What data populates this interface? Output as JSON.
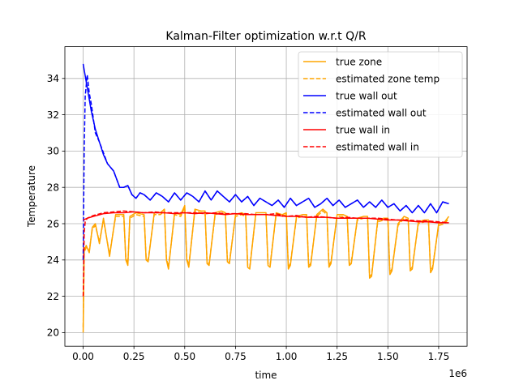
{
  "chart_data": {
    "type": "line",
    "title": "Kalman-Filter optimization w.r.t Q/R",
    "xlabel": "time",
    "ylabel": "Temperature",
    "x_offset_text": "1e6",
    "xlim": [
      -0.09,
      1.89
    ],
    "ylim": [
      19.25,
      35.75
    ],
    "x_ticks": [
      0.0,
      0.25,
      0.5,
      0.75,
      1.0,
      1.25,
      1.5,
      1.75
    ],
    "x_tick_labels": [
      "0.00",
      "0.25",
      "0.50",
      "0.75",
      "1.00",
      "1.25",
      "1.50",
      "1.75"
    ],
    "y_ticks": [
      20,
      22,
      24,
      26,
      28,
      30,
      32,
      34
    ],
    "y_tick_labels": [
      "20",
      "22",
      "24",
      "26",
      "28",
      "30",
      "32",
      "34"
    ],
    "grid": true,
    "legend_position": "top-right",
    "series": [
      {
        "name": "true zone",
        "color": "#ffa500",
        "style": "solid",
        "x": [
          0.0,
          0.005,
          0.015,
          0.03,
          0.045,
          0.06,
          0.08,
          0.1,
          0.13,
          0.16,
          0.2,
          0.21,
          0.22,
          0.23,
          0.26,
          0.3,
          0.31,
          0.32,
          0.35,
          0.38,
          0.4,
          0.41,
          0.42,
          0.45,
          0.48,
          0.5,
          0.51,
          0.52,
          0.55,
          0.58,
          0.6,
          0.61,
          0.62,
          0.65,
          0.68,
          0.7,
          0.71,
          0.72,
          0.75,
          0.78,
          0.8,
          0.81,
          0.82,
          0.85,
          0.88,
          0.9,
          0.91,
          0.92,
          0.95,
          0.98,
          1.0,
          1.01,
          1.02,
          1.05,
          1.08,
          1.1,
          1.11,
          1.12,
          1.15,
          1.18,
          1.2,
          1.21,
          1.22,
          1.25,
          1.28,
          1.3,
          1.31,
          1.32,
          1.35,
          1.38,
          1.4,
          1.41,
          1.42,
          1.45,
          1.48,
          1.5,
          1.51,
          1.52,
          1.55,
          1.58,
          1.6,
          1.61,
          1.62,
          1.65,
          1.68,
          1.7,
          1.71,
          1.72,
          1.75,
          1.78,
          1.8
        ],
        "y": [
          20.0,
          24.5,
          24.8,
          24.4,
          25.8,
          26.0,
          24.9,
          26.3,
          24.2,
          26.5,
          26.5,
          24.0,
          23.7,
          26.4,
          26.6,
          26.5,
          24.0,
          23.9,
          26.6,
          26.6,
          26.8,
          24.0,
          23.5,
          26.6,
          26.5,
          27.0,
          24.0,
          23.6,
          26.8,
          26.7,
          26.7,
          23.8,
          23.7,
          26.6,
          26.7,
          26.6,
          23.9,
          23.8,
          26.5,
          26.6,
          26.5,
          23.6,
          23.5,
          26.6,
          26.6,
          26.6,
          23.7,
          23.6,
          26.6,
          26.5,
          26.6,
          23.5,
          23.7,
          26.4,
          26.5,
          26.5,
          23.6,
          23.7,
          26.5,
          26.8,
          26.6,
          23.6,
          23.8,
          26.5,
          26.5,
          26.4,
          23.7,
          23.8,
          26.3,
          26.4,
          26.4,
          23.0,
          23.1,
          26.2,
          26.3,
          26.3,
          23.2,
          23.4,
          26.0,
          26.4,
          26.3,
          23.4,
          23.5,
          26.1,
          26.2,
          26.2,
          23.3,
          23.5,
          26.0,
          26.1,
          26.4
        ]
      },
      {
        "name": "estimated zone temp",
        "color": "#ffa500",
        "style": "dashed",
        "x": [
          0.0,
          0.005,
          0.015,
          0.03,
          0.045,
          0.06,
          0.08,
          0.1,
          0.13,
          0.16,
          0.2,
          0.21,
          0.22,
          0.23,
          0.26,
          0.3,
          0.31,
          0.32,
          0.35,
          0.38,
          0.4,
          0.41,
          0.42,
          0.45,
          0.48,
          0.5,
          0.51,
          0.52,
          0.55,
          0.58,
          0.6,
          0.61,
          0.62,
          0.65,
          0.68,
          0.7,
          0.71,
          0.72,
          0.75,
          0.78,
          0.8,
          0.81,
          0.82,
          0.85,
          0.88,
          0.9,
          0.91,
          0.92,
          0.95,
          0.98,
          1.0,
          1.01,
          1.02,
          1.05,
          1.08,
          1.1,
          1.11,
          1.12,
          1.15,
          1.18,
          1.2,
          1.21,
          1.22,
          1.25,
          1.28,
          1.3,
          1.31,
          1.32,
          1.35,
          1.38,
          1.4,
          1.41,
          1.42,
          1.45,
          1.48,
          1.5,
          1.51,
          1.52,
          1.55,
          1.58,
          1.6,
          1.61,
          1.62,
          1.65,
          1.68,
          1.7,
          1.71,
          1.72,
          1.75,
          1.78,
          1.8
        ],
        "y": [
          20.3,
          24.4,
          24.7,
          24.5,
          25.7,
          25.9,
          25.0,
          26.2,
          24.3,
          26.4,
          26.4,
          24.1,
          23.8,
          26.3,
          26.5,
          26.4,
          24.1,
          24.0,
          26.5,
          26.5,
          26.7,
          24.1,
          23.6,
          26.5,
          26.4,
          26.9,
          24.1,
          23.7,
          26.7,
          26.6,
          26.6,
          23.9,
          23.8,
          26.5,
          26.6,
          26.5,
          24.0,
          23.9,
          26.4,
          26.5,
          26.4,
          23.7,
          23.6,
          26.5,
          26.5,
          26.5,
          23.8,
          23.7,
          26.5,
          26.4,
          26.5,
          23.6,
          23.8,
          26.3,
          26.4,
          26.4,
          23.7,
          23.8,
          26.4,
          26.7,
          26.5,
          23.7,
          23.9,
          26.4,
          26.4,
          26.3,
          23.8,
          23.9,
          26.2,
          26.3,
          26.3,
          23.1,
          23.2,
          26.1,
          26.2,
          26.2,
          23.3,
          23.5,
          25.9,
          26.3,
          26.2,
          23.5,
          23.6,
          26.0,
          26.1,
          26.1,
          23.4,
          23.6,
          25.9,
          26.0,
          26.3
        ]
      },
      {
        "name": "true wall out",
        "color": "#0000ff",
        "style": "solid",
        "x": [
          0.0,
          0.02,
          0.04,
          0.06,
          0.08,
          0.1,
          0.12,
          0.15,
          0.18,
          0.2,
          0.22,
          0.24,
          0.26,
          0.28,
          0.3,
          0.33,
          0.36,
          0.39,
          0.42,
          0.45,
          0.48,
          0.51,
          0.54,
          0.57,
          0.6,
          0.63,
          0.66,
          0.69,
          0.72,
          0.75,
          0.78,
          0.81,
          0.84,
          0.87,
          0.9,
          0.93,
          0.96,
          0.99,
          1.02,
          1.05,
          1.08,
          1.11,
          1.14,
          1.17,
          1.2,
          1.23,
          1.26,
          1.29,
          1.32,
          1.35,
          1.38,
          1.41,
          1.44,
          1.47,
          1.5,
          1.53,
          1.56,
          1.59,
          1.62,
          1.65,
          1.68,
          1.71,
          1.74,
          1.77,
          1.8
        ],
        "y": [
          34.8,
          33.5,
          32.2,
          31.2,
          30.5,
          29.8,
          29.3,
          28.9,
          28.0,
          28.0,
          28.1,
          27.6,
          27.4,
          27.7,
          27.6,
          27.3,
          27.7,
          27.5,
          27.2,
          27.7,
          27.3,
          27.7,
          27.5,
          27.2,
          27.8,
          27.3,
          27.8,
          27.5,
          27.2,
          27.6,
          27.2,
          27.5,
          27.0,
          27.4,
          27.2,
          27.0,
          27.3,
          26.9,
          27.4,
          27.0,
          27.2,
          27.4,
          26.9,
          27.1,
          27.4,
          27.0,
          27.3,
          26.9,
          27.1,
          27.3,
          26.9,
          27.2,
          26.9,
          27.3,
          26.9,
          27.1,
          26.7,
          27.0,
          26.6,
          27.0,
          26.6,
          27.1,
          26.6,
          27.2,
          27.1
        ]
      },
      {
        "name": "estimated wall out",
        "color": "#0000ff",
        "style": "dashed",
        "x": [
          0.0,
          0.005,
          0.01,
          0.02,
          0.03,
          0.04,
          0.06,
          0.08,
          0.1,
          0.12,
          0.15,
          0.18,
          0.2,
          0.22,
          0.24,
          0.26,
          0.28,
          0.3,
          0.33,
          0.36,
          0.39,
          0.42,
          0.45,
          0.48,
          0.51,
          0.54,
          0.57,
          0.6,
          0.63,
          0.66,
          0.69,
          0.72,
          0.75,
          0.78,
          0.81,
          0.84,
          0.87,
          0.9,
          0.93,
          0.96,
          0.99,
          1.02,
          1.05,
          1.08,
          1.11,
          1.14,
          1.17,
          1.2,
          1.23,
          1.26,
          1.29,
          1.32,
          1.35,
          1.38,
          1.41,
          1.44,
          1.47,
          1.5,
          1.53,
          1.56,
          1.59,
          1.62,
          1.65,
          1.68,
          1.71,
          1.74,
          1.77,
          1.8
        ],
        "y": [
          24.0,
          30.0,
          33.0,
          34.2,
          33.2,
          32.6,
          31.0,
          30.5,
          29.9,
          29.3,
          28.9,
          28.0,
          28.0,
          28.1,
          27.6,
          27.4,
          27.7,
          27.6,
          27.3,
          27.7,
          27.5,
          27.2,
          27.7,
          27.3,
          27.7,
          27.5,
          27.2,
          27.8,
          27.3,
          27.8,
          27.5,
          27.2,
          27.6,
          27.2,
          27.5,
          27.0,
          27.4,
          27.2,
          27.0,
          27.3,
          26.9,
          27.4,
          27.0,
          27.2,
          27.4,
          26.9,
          27.1,
          27.4,
          27.0,
          27.3,
          26.9,
          27.1,
          27.3,
          26.9,
          27.2,
          26.9,
          27.3,
          26.9,
          27.1,
          26.7,
          27.0,
          26.6,
          27.0,
          26.6,
          27.1,
          26.6,
          27.2,
          27.1
        ]
      },
      {
        "name": "true wall in",
        "color": "#ff0000",
        "style": "solid",
        "x": [
          0.0,
          0.02,
          0.05,
          0.1,
          0.15,
          0.2,
          0.25,
          0.3,
          0.35,
          0.4,
          0.45,
          0.5,
          0.55,
          0.6,
          0.65,
          0.7,
          0.75,
          0.8,
          0.85,
          0.9,
          0.95,
          1.0,
          1.05,
          1.1,
          1.15,
          1.2,
          1.25,
          1.3,
          1.35,
          1.4,
          1.45,
          1.5,
          1.55,
          1.6,
          1.65,
          1.7,
          1.75,
          1.8
        ],
        "y": [
          26.2,
          26.3,
          26.4,
          26.55,
          26.6,
          26.6,
          26.65,
          26.6,
          26.6,
          26.6,
          26.55,
          26.6,
          26.55,
          26.6,
          26.55,
          26.5,
          26.55,
          26.5,
          26.5,
          26.5,
          26.45,
          26.4,
          26.4,
          26.35,
          26.35,
          26.35,
          26.3,
          26.3,
          26.3,
          26.3,
          26.25,
          26.2,
          26.2,
          26.15,
          26.1,
          26.1,
          26.05,
          26.05
        ]
      },
      {
        "name": "estimated wall in",
        "color": "#ff0000",
        "style": "dashed",
        "x": [
          0.0,
          0.002,
          0.005,
          0.01,
          0.02,
          0.05,
          0.1,
          0.15,
          0.2,
          0.25,
          0.3,
          0.35,
          0.4,
          0.45,
          0.5,
          0.55,
          0.6,
          0.65,
          0.7,
          0.75,
          0.8,
          0.85,
          0.9,
          0.95,
          1.0,
          1.05,
          1.1,
          1.15,
          1.2,
          1.25,
          1.3,
          1.35,
          1.4,
          1.45,
          1.5,
          1.55,
          1.6,
          1.65,
          1.7,
          1.75,
          1.8
        ],
        "y": [
          22.0,
          23.0,
          25.5,
          26.1,
          26.3,
          26.45,
          26.6,
          26.65,
          26.7,
          26.65,
          26.6,
          26.65,
          26.6,
          26.6,
          26.6,
          26.6,
          26.55,
          26.6,
          26.55,
          26.55,
          26.55,
          26.5,
          26.5,
          26.55,
          26.4,
          26.45,
          26.35,
          26.4,
          26.35,
          26.3,
          26.35,
          26.3,
          26.3,
          26.3,
          26.25,
          26.2,
          26.2,
          26.15,
          26.15,
          26.1,
          26.05
        ]
      }
    ]
  }
}
